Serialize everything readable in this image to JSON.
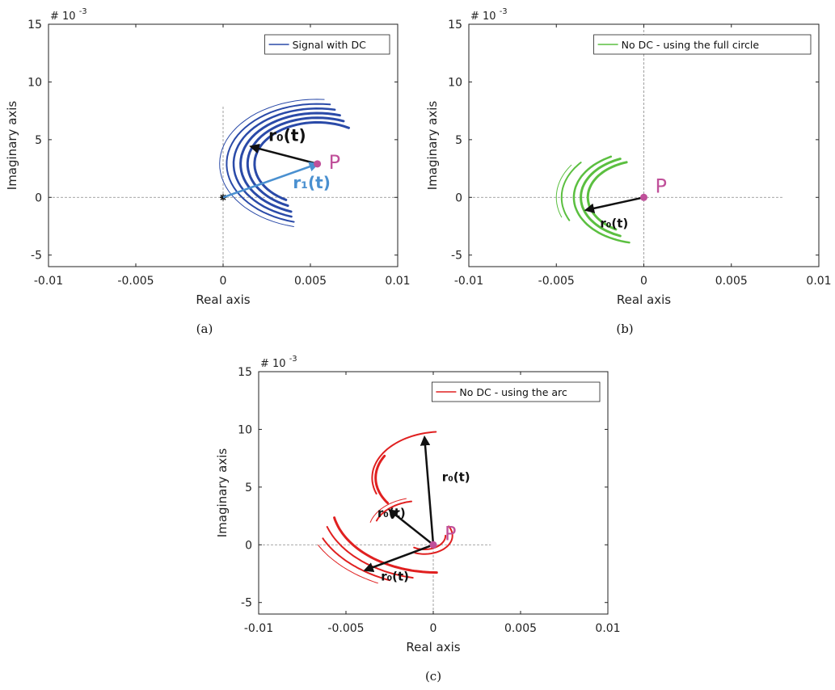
{
  "chart_data": [
    {
      "type": "scatter",
      "panel": "(a)",
      "xlabel": "Real axis",
      "ylabel": "Imaginary axis",
      "exponent_label": "# 10",
      "exponent_power": "-3",
      "xlim": [
        -0.01,
        0.01
      ],
      "ylim": [
        -6,
        15
      ],
      "xticks": [
        -0.01,
        -0.005,
        0,
        0.005,
        0.01
      ],
      "xtick_labels": [
        "-0.01",
        "-0.005",
        "0",
        "0.005",
        "0.01"
      ],
      "yticks": [
        -5,
        0,
        5,
        10,
        15
      ],
      "ytick_labels": [
        "-5",
        "0",
        "5",
        "10",
        "15"
      ],
      "grid": false,
      "crosshair": {
        "x_range": [
          -0.01,
          0.01
        ],
        "y_range": [
          -6,
          8
        ]
      },
      "legend": {
        "label": "Signal with DC",
        "position": "top-right"
      },
      "series_color": "#2a4aa8",
      "arcs": [
        {
          "cx": 0.0054,
          "cy": 0.0029,
          "r": 0.0036,
          "a0": 60,
          "a1": 240,
          "w": 3
        },
        {
          "cx": 0.0054,
          "cy": 0.0029,
          "r": 0.004,
          "a0": 68,
          "a1": 245,
          "w": 3
        },
        {
          "cx": 0.0054,
          "cy": 0.0029,
          "r": 0.0044,
          "a0": 73,
          "a1": 250,
          "w": 3
        },
        {
          "cx": 0.0054,
          "cy": 0.0029,
          "r": 0.0048,
          "a0": 78,
          "a1": 252,
          "w": 2.5
        },
        {
          "cx": 0.0054,
          "cy": 0.0029,
          "r": 0.0052,
          "a0": 82,
          "a1": 255,
          "w": 2
        },
        {
          "cx": 0.0054,
          "cy": 0.0029,
          "r": 0.0056,
          "a0": 86,
          "a1": 256,
          "w": 1
        }
      ],
      "point_P": {
        "x": 0.0054,
        "y": 0.0029,
        "label": "P"
      },
      "origin_marker": {
        "x": 0,
        "y": 0
      },
      "arrows": [
        {
          "from": [
            0.0054,
            0.0029
          ],
          "to": [
            0.0016,
            0.0044
          ],
          "label": "r₀(t)",
          "label_at": [
            0.0026,
            0.0049
          ],
          "color": "#111111"
        },
        {
          "from": [
            0,
            0
          ],
          "to": [
            0.0054,
            0.0029
          ],
          "label": "r₁(t)",
          "label_at": [
            0.004,
            0.0008
          ],
          "color": "#4a90d0"
        }
      ]
    },
    {
      "type": "scatter",
      "panel": "(b)",
      "xlabel": "Real axis",
      "ylabel": "Imaginary axis",
      "exponent_label": "# 10",
      "exponent_power": "-3",
      "xlim": [
        -0.01,
        0.01
      ],
      "ylim": [
        -6,
        15
      ],
      "xticks": [
        -0.01,
        -0.005,
        0,
        0.005,
        0.01
      ],
      "xtick_labels": [
        "-0.01",
        "-0.005",
        "0",
        "0.005",
        "0.01"
      ],
      "yticks": [
        -5,
        0,
        5,
        10,
        15
      ],
      "ytick_labels": [
        "-5",
        "0",
        "5",
        "10",
        "15"
      ],
      "grid": false,
      "crosshair": {
        "x_range": [
          -0.01,
          0.008
        ],
        "y_range": [
          -6,
          15
        ]
      },
      "legend": {
        "label": "No DC - using the full circle",
        "position": "top-right"
      },
      "series_color": "#5bbf40",
      "arcs": [
        {
          "cx": 0,
          "cy": 0,
          "r": 0.0032,
          "a0": 108,
          "a1": 240,
          "w": 3
        },
        {
          "cx": 0,
          "cy": 0,
          "r": 0.0036,
          "a0": 112,
          "a1": 248,
          "w": 3
        },
        {
          "cx": 0,
          "cy": 0,
          "r": 0.004,
          "a0": 118,
          "a1": 258,
          "w": 2.5
        },
        {
          "cx": 0,
          "cy": 0,
          "r": 0.0047,
          "a0": 140,
          "a1": 205,
          "w": 2
        },
        {
          "cx": 0,
          "cy": 0,
          "r": 0.005,
          "a0": 146,
          "a1": 200,
          "w": 1
        }
      ],
      "point_P": {
        "x": 0,
        "y": 0,
        "label": "P"
      },
      "arrows": [
        {
          "from": [
            0,
            0
          ],
          "to": [
            -0.0033,
            -0.0011
          ],
          "label": "r₀(t)",
          "label_at": [
            -0.0025,
            -0.0026
          ],
          "color": "#111111"
        }
      ]
    },
    {
      "type": "scatter",
      "panel": "(c)",
      "xlabel": "Real axis",
      "ylabel": "Imaginary axis",
      "exponent_label": "# 10",
      "exponent_power": "-3",
      "xlim": [
        -0.01,
        0.01
      ],
      "ylim": [
        -6,
        15
      ],
      "xticks": [
        -0.01,
        -0.005,
        0,
        0.005,
        0.01
      ],
      "xtick_labels": [
        "-0.01",
        "-0.005",
        "0",
        "0.005",
        "0.01"
      ],
      "yticks": [
        -5,
        0,
        5,
        10,
        15
      ],
      "ytick_labels": [
        "-5",
        "0",
        "5",
        "10",
        "15"
      ],
      "grid": false,
      "crosshair": {
        "x_range": [
          -0.01,
          0.0033
        ],
        "y_range": [
          -6,
          0.5
        ]
      },
      "legend": {
        "label": "No DC - using the arc",
        "position": "top-right"
      },
      "series_color": "#e02020",
      "arcs": [
        {
          "cx": 0.0005,
          "cy": 0.0058,
          "r": 0.0038,
          "a0": 150,
          "a1": 215,
          "w": 3
        },
        {
          "cx": 0.0005,
          "cy": 0.0058,
          "r": 0.004,
          "a0": 95,
          "a1": 200,
          "w": 2
        },
        {
          "cx": -0.0008,
          "cy": 0.0012,
          "r": 0.0026,
          "a0": 100,
          "a1": 160,
          "w": 2
        },
        {
          "cx": -0.0008,
          "cy": 0.0012,
          "r": 0.0029,
          "a0": 105,
          "a1": 165,
          "w": 1
        },
        {
          "cx": 0.0002,
          "cy": 0.0036,
          "r": 0.006,
          "a0": 192,
          "a1": 270,
          "w": 3
        },
        {
          "cx": 0.0002,
          "cy": 0.0036,
          "r": 0.0066,
          "a0": 198,
          "a1": 258,
          "w": 2
        },
        {
          "cx": 0.0002,
          "cy": 0.0036,
          "r": 0.0072,
          "a0": 205,
          "a1": 248,
          "w": 2
        },
        {
          "cx": 0.0002,
          "cy": 0.0036,
          "r": 0.0077,
          "a0": 208,
          "a1": 244,
          "w": 1
        },
        {
          "cx": -0.0005,
          "cy": 0.0008,
          "r": 0.0012,
          "a0": 240,
          "a1": 360,
          "w": 2
        },
        {
          "cx": -0.0005,
          "cy": 0.0008,
          "r": 0.0016,
          "a0": 250,
          "a1": 390,
          "w": 2
        }
      ],
      "point_P": {
        "x": 0,
        "y": 0,
        "label": "P"
      },
      "arrows": [
        {
          "from": [
            0,
            0
          ],
          "to": [
            -0.0005,
            0.0093
          ],
          "label": "r₀(t)",
          "label_at": [
            0.0005,
            0.0055
          ],
          "color": "#111111"
        },
        {
          "from": [
            0,
            0
          ],
          "to": [
            -0.0025,
            0.003
          ],
          "label": "r₀(t)",
          "label_at": [
            -0.0032,
            0.0024
          ],
          "color": "#111111"
        },
        {
          "from": [
            0,
            0
          ],
          "to": [
            -0.0039,
            -0.0022
          ],
          "label": "r₀(t)",
          "label_at": [
            -0.003,
            -0.0031
          ],
          "color": "#111111"
        }
      ]
    }
  ]
}
